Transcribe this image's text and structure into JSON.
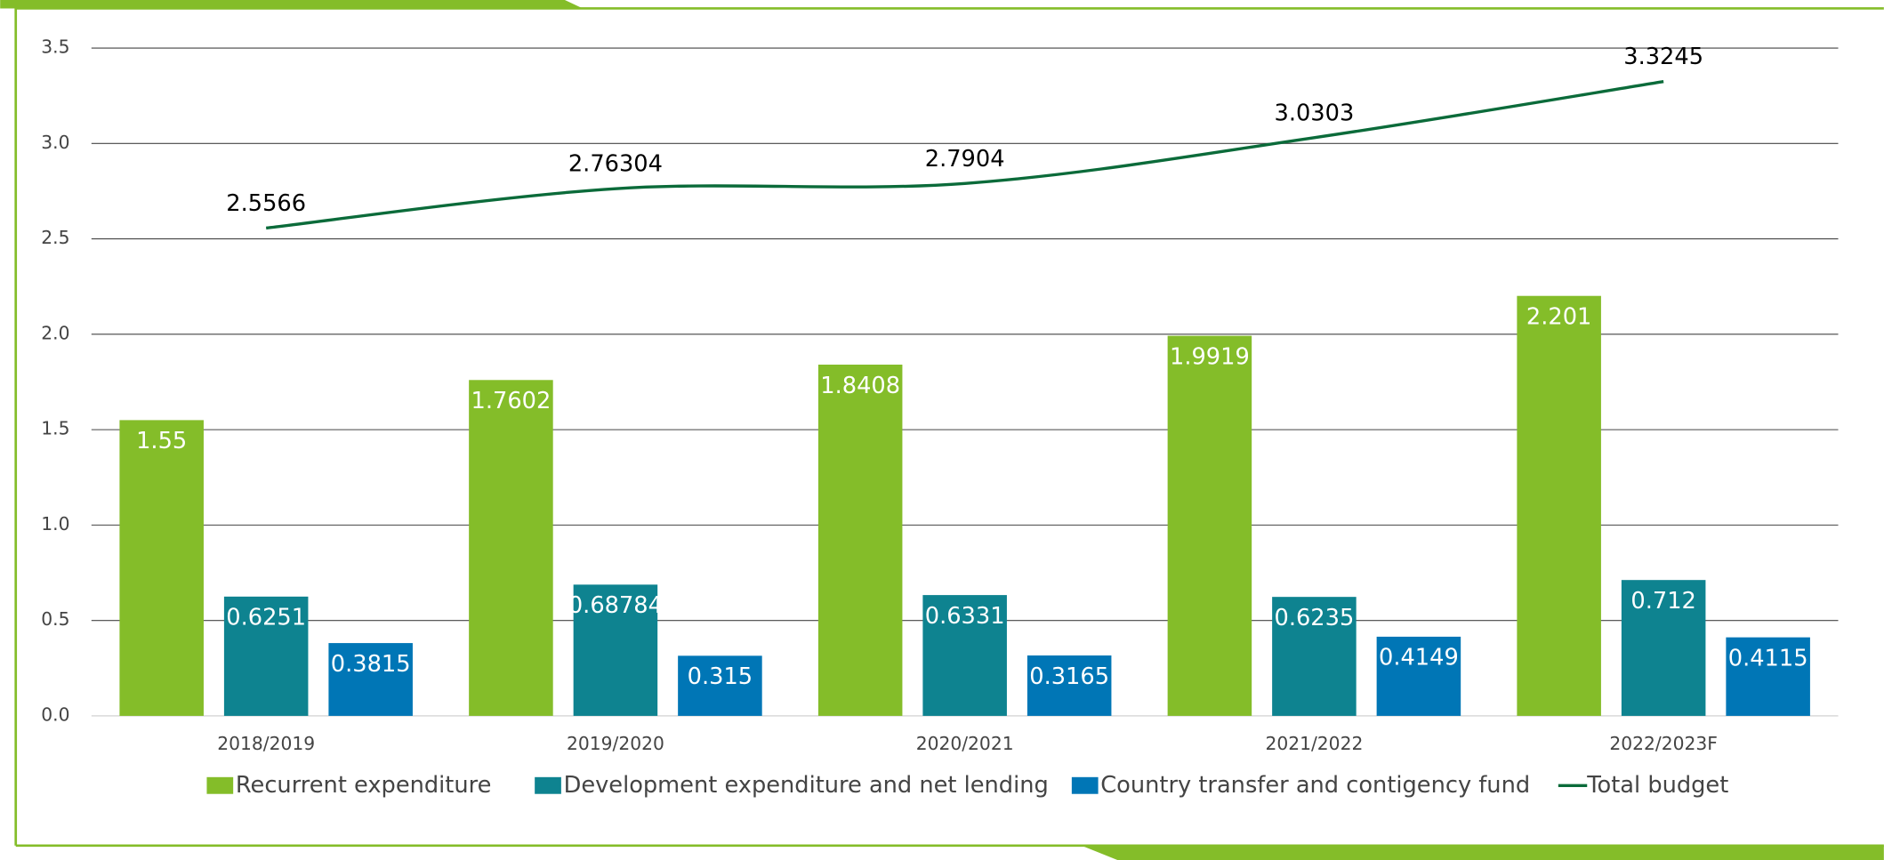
{
  "chart_data": {
    "type": "bar",
    "categories": [
      "2018/2019",
      "2019/2020",
      "2020/2021",
      "2021/2022",
      "2022/2023F"
    ],
    "series": [
      {
        "name": "Recurrent expenditure",
        "color": "#84bd29",
        "values": [
          1.55,
          1.7602,
          1.8408,
          1.9919,
          2.201
        ]
      },
      {
        "name": "Development expenditure and net lending",
        "color": "#0e8390",
        "values": [
          0.6251,
          0.68784,
          0.6331,
          0.6235,
          0.712
        ]
      },
      {
        "name": "Country transfer and contigency fund",
        "color": "#0076b6",
        "values": [
          0.3815,
          0.315,
          0.3165,
          0.4149,
          0.4115
        ]
      },
      {
        "name": "Total budget",
        "type": "line",
        "color": "#0b6b3a",
        "values": [
          2.5566,
          2.76304,
          2.7904,
          3.0303,
          3.3245
        ]
      }
    ],
    "ylim": [
      0,
      3.5
    ],
    "yticks": [
      {
        "value": 0,
        "label": "0.0"
      },
      0.5,
      {
        "value": 1,
        "label": "1.0"
      },
      1.5,
      {
        "value": 2,
        "label": "2.0"
      },
      2.5,
      {
        "value": 3,
        "label": "3.0"
      },
      3.5
    ],
    "grid": true,
    "legend": "bottom"
  }
}
